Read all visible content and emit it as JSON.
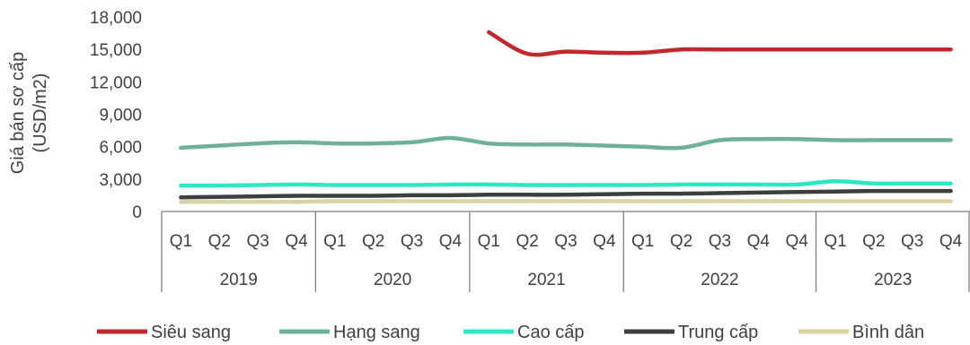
{
  "chart_data": {
    "type": "line",
    "ylabel": "Giá bán sơ cấp (USD/m2)",
    "ylabel_lines": [
      "Giá bán sơ cấp",
      "(USD/m2)"
    ],
    "ylim": [
      0,
      18000
    ],
    "yticks": [
      0,
      3000,
      6000,
      9000,
      12000,
      15000,
      18000
    ],
    "ytick_labels": [
      "0",
      "3,000",
      "6,000",
      "9,000",
      "12,000",
      "15,000",
      "18,000"
    ],
    "quarter_labels": [
      "Q1",
      "Q2",
      "Q3",
      "Q4",
      "Q1",
      "Q2",
      "Q3",
      "Q4",
      "Q1",
      "Q2",
      "Q3",
      "Q4",
      "Q1",
      "Q2",
      "Q3",
      "Q4",
      "Q4",
      "Q1",
      "Q2",
      "Q3",
      "Q4"
    ],
    "year_groups": [
      {
        "label": "2019",
        "count": 4
      },
      {
        "label": "2020",
        "count": 4
      },
      {
        "label": "2021",
        "count": 4
      },
      {
        "label": "2022",
        "count": 5
      },
      {
        "label": "2023",
        "count": 4
      }
    ],
    "grid": false,
    "legend_position": "bottom",
    "series": [
      {
        "name": "Siêu sang",
        "color": "#c0282d",
        "values": [
          null,
          null,
          null,
          null,
          null,
          null,
          null,
          null,
          16600,
          14600,
          14800,
          14700,
          14700,
          15000,
          15000,
          15000,
          15000,
          15000,
          15000,
          15000,
          15000
        ]
      },
      {
        "name": "Hạng sang",
        "color": "#6fb09a",
        "values": [
          5900,
          6100,
          6300,
          6400,
          6300,
          6300,
          6400,
          6800,
          6300,
          6200,
          6200,
          6100,
          6000,
          5900,
          6600,
          6700,
          6700,
          6600,
          6600,
          6600,
          6600
        ]
      },
      {
        "name": "Cao cấp",
        "color": "#2de8c6",
        "values": [
          2400,
          2400,
          2450,
          2500,
          2450,
          2450,
          2450,
          2500,
          2500,
          2450,
          2450,
          2450,
          2450,
          2500,
          2500,
          2500,
          2500,
          2800,
          2600,
          2600,
          2600
        ]
      },
      {
        "name": "Trung cấp",
        "color": "#3c3f3f",
        "values": [
          1300,
          1350,
          1400,
          1450,
          1450,
          1450,
          1500,
          1500,
          1550,
          1550,
          1550,
          1600,
          1650,
          1650,
          1700,
          1750,
          1800,
          1850,
          1900,
          1900,
          1900
        ]
      },
      {
        "name": "Bình dân",
        "color": "#d9d3a4",
        "values": [
          900,
          900,
          900,
          900,
          950,
          950,
          950,
          950,
          950,
          950,
          950,
          950,
          950,
          950,
          950,
          950,
          950,
          950,
          950,
          950,
          950
        ]
      }
    ]
  }
}
